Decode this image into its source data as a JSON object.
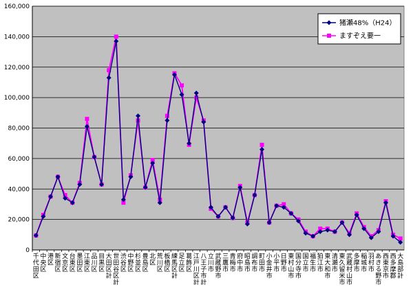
{
  "colors": {
    "plot_bg": "#c0c0c0",
    "gridline": "#000000",
    "series1": "#000080",
    "series2": "#ff00ff"
  },
  "chart_data": {
    "type": "line",
    "title": "",
    "xlabel": "",
    "ylabel": "",
    "ylim": [
      0,
      160000
    ],
    "y_ticks": [
      "0",
      "20,000",
      "40,000",
      "60,000",
      "80,000",
      "100,000",
      "120,000",
      "140,000",
      "160,000"
    ],
    "y_tick_values": [
      0,
      20000,
      40000,
      60000,
      80000,
      100000,
      120000,
      140000,
      160000
    ],
    "grid": "horizontal",
    "legend_position": "top-right",
    "categories": [
      "千代田区",
      "中央区",
      "港区",
      "新宿区",
      "文京区",
      "台東区",
      "墨田区",
      "江東区",
      "品川区",
      "目黒区",
      "大田区計",
      "世田谷区計",
      "渋谷区",
      "中野区",
      "杉並区",
      "豊島区",
      "北区",
      "荒川区",
      "板橋区",
      "練馬区計",
      "足立区",
      "葛飾区",
      "江戸川区計",
      "八王子市計",
      "立川市",
      "武蔵野市",
      "三鷹市",
      "青梅市",
      "府中市",
      "昭島市",
      "調布市",
      "町田市",
      "小金井市",
      "小平市",
      "日野市",
      "東村山市",
      "国分寺市",
      "国立市",
      "福生市",
      "狛江市",
      "東大和市",
      "清瀬市",
      "東久留米市",
      "武蔵村山市",
      "多摩市",
      "稲城市",
      "羽村市",
      "あきる野市",
      "西東京市",
      "西多摩郡",
      "大島部計"
    ],
    "series": [
      {
        "name": "猪瀬48%（H24）",
        "marker": "diamond",
        "values": [
          9500,
          22000,
          35000,
          48000,
          34000,
          31000,
          43000,
          81000,
          61000,
          43000,
          113000,
          137000,
          33000,
          48000,
          88000,
          41000,
          57000,
          31000,
          85000,
          115000,
          102000,
          70000,
          103000,
          84000,
          28000,
          22000,
          28000,
          21000,
          41000,
          17000,
          36000,
          66000,
          18000,
          29000,
          28000,
          24000,
          19000,
          11000,
          9000,
          12000,
          13000,
          12000,
          18000,
          10000,
          23000,
          14000,
          8000,
          12000,
          31000,
          9000,
          5000
        ]
      },
      {
        "name": "ますぞえ要一",
        "marker": "square",
        "values": [
          9500,
          23000,
          35000,
          48000,
          36000,
          31000,
          44000,
          86000,
          61000,
          43000,
          118000,
          140000,
          31000,
          49000,
          85000,
          41000,
          59000,
          33000,
          88000,
          116000,
          108000,
          69000,
          100000,
          85000,
          27000,
          22000,
          28000,
          21000,
          42000,
          18000,
          36000,
          69000,
          18000,
          29000,
          30000,
          24000,
          20000,
          12000,
          9000,
          14000,
          14000,
          12000,
          18000,
          11000,
          24000,
          15000,
          9000,
          13000,
          32000,
          10000,
          7500
        ]
      }
    ]
  }
}
